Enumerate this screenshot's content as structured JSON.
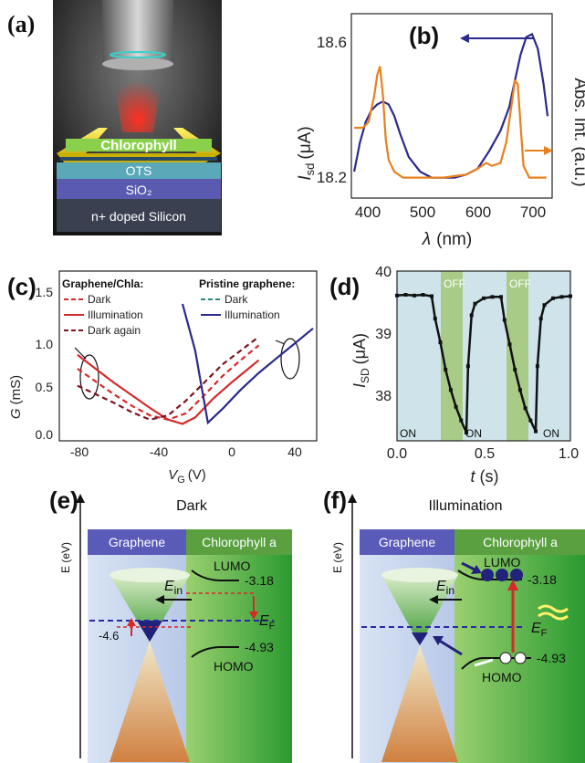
{
  "panel_a": {
    "label": "(a)",
    "layers": [
      "Chlorophyll",
      "OTS",
      "SiO₂",
      "n+ doped Silicon"
    ]
  },
  "panel_b": {
    "label": "(b)",
    "ylabel_left_italic": "I",
    "ylabel_left_sub": "sd",
    "ylabel_left_unit": "(μA)",
    "ylabel_right": "Abs. Int. (a.u.)",
    "xlabel_italic": "λ",
    "xlabel_unit": "(nm)",
    "yticks": [
      "18.6",
      "18.2"
    ],
    "xticks": [
      "400",
      "500",
      "600",
      "700"
    ]
  },
  "panel_c": {
    "label": "(c)",
    "ylabel_italic": "G",
    "ylabel_unit": "(mS)",
    "xlabel_italic": "V",
    "xlabel_sub": "G",
    "xlabel_unit": "(V)",
    "yticks": [
      "0.0",
      "0.5",
      "1.0",
      "1.5"
    ],
    "xticks": [
      "-80",
      "-40",
      "0",
      "40"
    ],
    "legend_left_title": "Graphene/Chla:",
    "legend_left": [
      "Dark",
      "Illumination",
      "Dark again"
    ],
    "legend_right_title": "Pristine graphene:",
    "legend_right": [
      "Dark",
      "Illumination"
    ]
  },
  "panel_d": {
    "label": "(d)",
    "ylabel_italic": "I",
    "ylabel_sub": "SD",
    "ylabel_unit": "(μA)",
    "xlabel_italic": "t",
    "xlabel_unit": "(s)",
    "yticks": [
      "40",
      "39",
      "38"
    ],
    "xticks": [
      "0.0",
      "0.5",
      "1.0"
    ],
    "on_label": "ON",
    "off_label": "OFF"
  },
  "panel_e": {
    "label": "(e)",
    "title": "Dark",
    "axis": "E (eV)",
    "left_header": "Graphene",
    "right_header": "Chlorophyll a",
    "lumo": "LUMO",
    "homo": "HOMO",
    "lumo_val": "-3.18",
    "homo_val": "-4.93",
    "dirac_val": "-4.6",
    "ein": "E",
    "ein_sub": "in",
    "ef": "E",
    "ef_sub": "F"
  },
  "panel_f": {
    "label": "(f)",
    "title": "Illumination",
    "axis": "E (eV)",
    "left_header": "Graphene",
    "right_header": "Chlorophyll a",
    "lumo": "LUMO",
    "homo": "HOMO",
    "lumo_val": "-3.18",
    "homo_val": "-4.93",
    "ein": "E",
    "ein_sub": "in",
    "ef": "E",
    "ef_sub": "F"
  },
  "colors": {
    "navy": "#2a2a8c",
    "orange": "#e8801e",
    "red": "#d42a2a",
    "darkred": "#7a1420",
    "teal": "#2a8a80",
    "green": "#4aa03a",
    "graphene_blue": "#5a5ab8"
  },
  "chart_data": [
    {
      "type": "line",
      "panel": "(b)",
      "xlabel": "λ (nm)",
      "ylabel": "Isd (μA)",
      "ylabel_right": "Abs. Int. (a.u.)",
      "xlim": [
        380,
        730
      ],
      "ylim": [
        18.05,
        18.68
      ],
      "series": [
        {
          "axis": "left",
          "color": "#2a2a8c",
          "x": [
            385,
            395,
            405,
            415,
            425,
            435,
            445,
            455,
            465,
            480,
            500,
            520,
            540,
            560,
            580,
            600,
            620,
            640,
            655,
            665,
            675,
            685,
            695,
            705,
            715,
            722
          ],
          "y": [
            18.14,
            18.24,
            18.31,
            18.35,
            18.37,
            18.38,
            18.37,
            18.33,
            18.27,
            18.19,
            18.14,
            18.12,
            18.12,
            18.12,
            18.13,
            18.15,
            18.21,
            18.28,
            18.36,
            18.45,
            18.54,
            18.6,
            18.61,
            18.56,
            18.44,
            18.33
          ]
        },
        {
          "axis": "right",
          "color": "#e8801e",
          "x": [
            385,
            400,
            410,
            420,
            425,
            430,
            435,
            440,
            445,
            455,
            470,
            500,
            540,
            580,
            600,
            615,
            625,
            640,
            650,
            660,
            665,
            670,
            675,
            680,
            690,
            700,
            720
          ],
          "y": [
            18.29,
            18.29,
            18.31,
            18.4,
            18.47,
            18.5,
            18.4,
            18.25,
            18.18,
            18.14,
            18.12,
            18.12,
            18.12,
            18.13,
            18.15,
            18.17,
            18.16,
            18.17,
            18.24,
            18.38,
            18.45,
            18.44,
            18.3,
            18.16,
            18.12,
            18.12,
            18.12
          ]
        }
      ]
    },
    {
      "type": "line",
      "panel": "(c)",
      "xlabel": "VG (V)",
      "ylabel": "G (mS)",
      "xlim": [
        -90,
        52
      ],
      "ylim": [
        0,
        1.6
      ],
      "series": [
        {
          "name": "Dark",
          "group": "Graphene/Chla",
          "color": "#d42a2a",
          "dash": true,
          "x": [
            -80,
            -70,
            -60,
            -50,
            -40,
            -30,
            -20,
            -10,
            0,
            10,
            20
          ],
          "y": [
            0.68,
            0.56,
            0.44,
            0.33,
            0.24,
            0.2,
            0.26,
            0.43,
            0.61,
            0.76,
            0.9
          ]
        },
        {
          "name": "Illumination",
          "group": "Graphene/Chla",
          "color": "#d42a2a",
          "dash": false,
          "x": [
            -80,
            -70,
            -60,
            -50,
            -40,
            -30,
            -22,
            -15,
            -5,
            5,
            20
          ],
          "y": [
            0.81,
            0.68,
            0.55,
            0.43,
            0.31,
            0.2,
            0.16,
            0.22,
            0.4,
            0.55,
            0.76
          ]
        },
        {
          "name": "Dark again",
          "group": "Graphene/Chla",
          "color": "#7a1420",
          "dash": true,
          "x": [
            -80,
            -70,
            -60,
            -50,
            -40,
            -30,
            -20,
            -10,
            0,
            10,
            20
          ],
          "y": [
            0.52,
            0.44,
            0.36,
            0.27,
            0.2,
            0.24,
            0.38,
            0.55,
            0.72,
            0.85,
            0.98
          ]
        },
        {
          "name": "Dark",
          "group": "Pristine graphene",
          "color": "#2a8a80",
          "dash": true,
          "x": [],
          "y": []
        },
        {
          "name": "Illumination",
          "group": "Pristine graphene",
          "color": "#2a2a8c",
          "dash": false,
          "x": [
            -22,
            -15,
            -8,
            0,
            10,
            20,
            30,
            40,
            50
          ],
          "y": [
            1.29,
            0.85,
            0.17,
            0.3,
            0.48,
            0.64,
            0.78,
            0.92,
            1.06
          ]
        }
      ]
    },
    {
      "type": "line",
      "panel": "(d)",
      "xlabel": "t (s)",
      "ylabel": "ISD (μA)",
      "xlim": [
        0,
        1.0
      ],
      "ylim": [
        37.5,
        40.0
      ],
      "series": [
        {
          "color": "#111111",
          "x": [
            0.0,
            0.05,
            0.1,
            0.15,
            0.2,
            0.22,
            0.25,
            0.28,
            0.31,
            0.34,
            0.37,
            0.4,
            0.41,
            0.43,
            0.45,
            0.5,
            0.55,
            0.6,
            0.62,
            0.65,
            0.68,
            0.71,
            0.74,
            0.77,
            0.8,
            0.81,
            0.83,
            0.85,
            0.9,
            0.95,
            1.0
          ],
          "y": [
            39.64,
            39.65,
            39.64,
            39.65,
            39.63,
            39.3,
            38.95,
            38.55,
            38.25,
            38.0,
            37.8,
            37.62,
            38.6,
            39.35,
            39.52,
            39.6,
            39.62,
            39.62,
            39.28,
            38.92,
            38.55,
            38.25,
            37.98,
            37.8,
            37.64,
            38.6,
            39.3,
            39.5,
            39.6,
            39.62,
            39.63
          ]
        }
      ]
    }
  ]
}
